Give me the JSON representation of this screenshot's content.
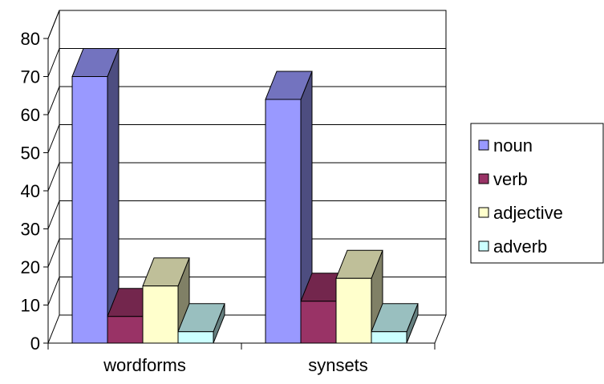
{
  "chart_data": {
    "type": "bar",
    "categories": [
      "wordforms",
      "synsets"
    ],
    "series": [
      {
        "name": "noun",
        "values": [
          70,
          64
        ]
      },
      {
        "name": "verb",
        "values": [
          7,
          11
        ]
      },
      {
        "name": "adjective",
        "values": [
          15,
          17
        ]
      },
      {
        "name": "adverb",
        "values": [
          3,
          3
        ]
      }
    ],
    "ylim": [
      0,
      80
    ],
    "yticks": [
      0,
      10,
      20,
      30,
      40,
      50,
      60,
      70,
      80
    ],
    "grid": true,
    "legend_position": "right",
    "style": "3d-clustered-column",
    "colors": {
      "noun": "#9999ff",
      "verb": "#993366",
      "adjective": "#ffffcc",
      "adverb": "#ccffff"
    }
  }
}
